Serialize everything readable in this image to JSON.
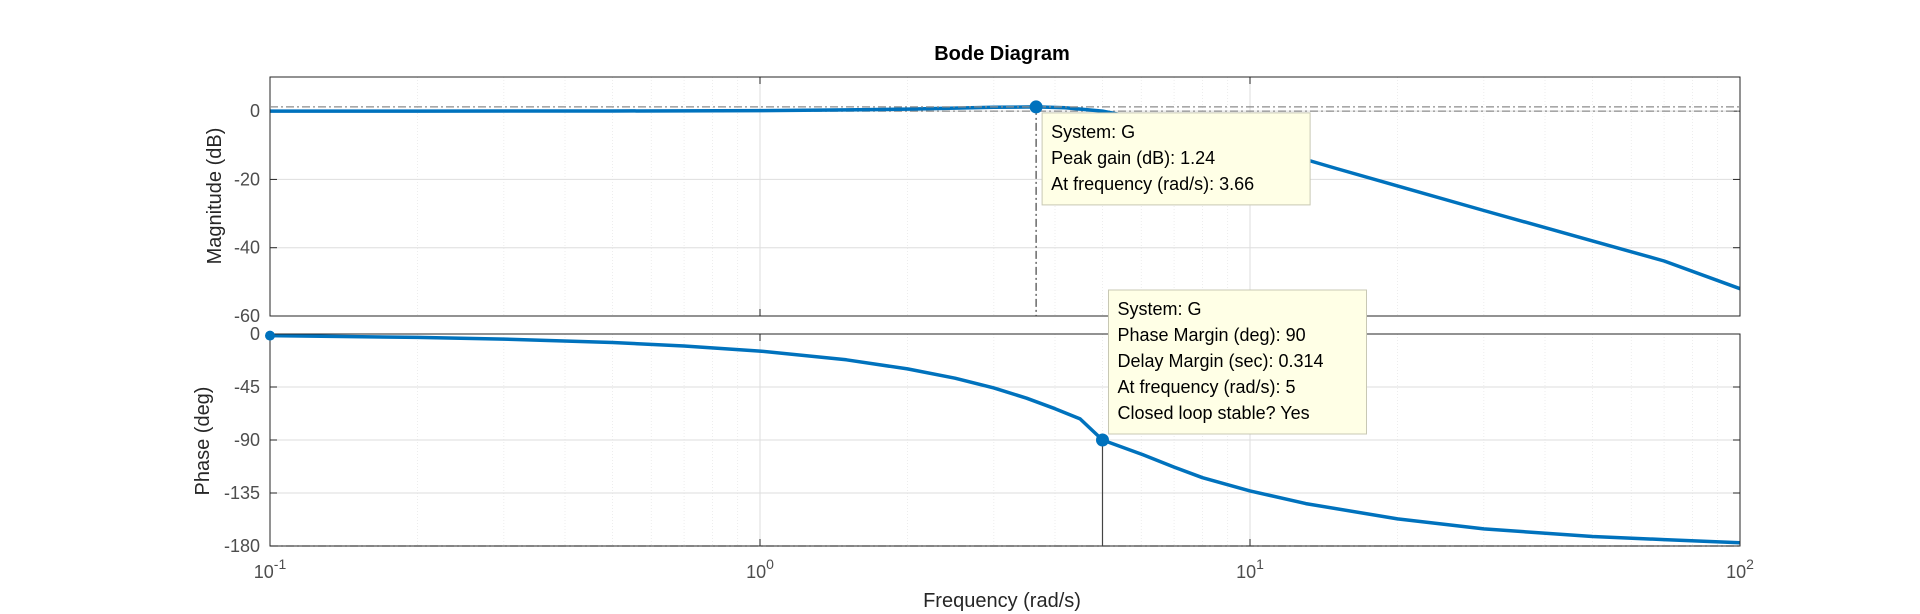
{
  "chart_data": {
    "type": "bode",
    "title": "Bode Diagram",
    "xlabel": "Frequency  (rad/s)",
    "x_scale": "log",
    "xlim": [
      0.1,
      100
    ],
    "x_ticks": [
      {
        "base": "10",
        "exp": "-1"
      },
      {
        "base": "10",
        "exp": "0"
      },
      {
        "base": "10",
        "exp": "1"
      },
      {
        "base": "10",
        "exp": "2"
      }
    ],
    "grid": true,
    "colors": {
      "series": "#0072bd",
      "grid": "#dedede",
      "axis": "#262626",
      "tooltip_bg": "#ffffe6",
      "tooltip_border": "#c8c8b4"
    },
    "magnitude": {
      "ylabel": "Magnitude (dB)",
      "ylim": [
        -60,
        10
      ],
      "y_ticks": [
        0,
        -20,
        -40,
        -60
      ],
      "series": {
        "name": "G",
        "points": [
          [
            0.1,
            0.0
          ],
          [
            0.2,
            0.0
          ],
          [
            0.5,
            0.04
          ],
          [
            1.0,
            0.15
          ],
          [
            1.5,
            0.35
          ],
          [
            2.0,
            0.6
          ],
          [
            2.5,
            0.9
          ],
          [
            3.0,
            1.14
          ],
          [
            3.66,
            1.24
          ],
          [
            4.2,
            1.0
          ],
          [
            5.0,
            0.0
          ],
          [
            6.0,
            -2.2
          ],
          [
            7.0,
            -4.4
          ],
          [
            8.0,
            -6.2
          ],
          [
            10.0,
            -9.4
          ],
          [
            15.0,
            -16.8
          ],
          [
            20.0,
            -21.9
          ],
          [
            30.0,
            -29.1
          ],
          [
            50.0,
            -38.0
          ],
          [
            70.0,
            -43.9
          ],
          [
            100.0,
            -52.0
          ]
        ]
      },
      "reference_line": 0
    },
    "phase": {
      "ylabel": "Phase (deg)",
      "ylim": [
        -180,
        0
      ],
      "y_ticks": [
        0,
        -45,
        -90,
        -135,
        -180
      ],
      "series": {
        "name": "G",
        "points": [
          [
            0.1,
            -1.4
          ],
          [
            0.2,
            -2.9
          ],
          [
            0.3,
            -4.3
          ],
          [
            0.5,
            -7.2
          ],
          [
            0.7,
            -10.2
          ],
          [
            1.0,
            -14.5
          ],
          [
            1.5,
            -21.9
          ],
          [
            2.0,
            -29.6
          ],
          [
            2.5,
            -37.5
          ],
          [
            3.0,
            -45.8
          ],
          [
            3.5,
            -54.5
          ],
          [
            4.0,
            -63.4
          ],
          [
            4.5,
            -72.1
          ],
          [
            5.0,
            -90.0
          ],
          [
            6.0,
            -102.0
          ],
          [
            7.0,
            -113.0
          ],
          [
            8.0,
            -122.0
          ],
          [
            10.0,
            -133.2
          ],
          [
            13.0,
            -144.0
          ],
          [
            20.0,
            -157.0
          ],
          [
            30.0,
            -165.5
          ],
          [
            50.0,
            -171.9
          ],
          [
            70.0,
            -174.6
          ],
          [
            100.0,
            -177.2
          ]
        ]
      },
      "reference_line": -180
    },
    "annotations": [
      {
        "panel": "magnitude",
        "x": 3.66,
        "y": 1.24,
        "lines": [
          "System: G",
          "Peak gain (dB): 1.24",
          "At frequency (rad/s): 3.66"
        ]
      },
      {
        "panel": "phase",
        "x": 5,
        "y": -90,
        "lines": [
          "System: G",
          "Phase Margin (deg): 90",
          "Delay Margin (sec): 0.314",
          "At frequency (rad/s): 5",
          "Closed loop stable? Yes"
        ]
      }
    ]
  }
}
